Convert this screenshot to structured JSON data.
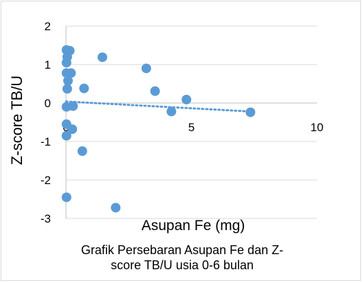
{
  "chart_data": {
    "type": "scatter",
    "title": "",
    "xlabel": "Asupan Fe (mg)",
    "ylabel": "Z-score TB/U",
    "caption_lines": [
      "Grafik Persebaran Asupan Fe dan Z-",
      "score TB/U usia 0-6 bulan"
    ],
    "xlim": [
      0,
      10
    ],
    "ylim": [
      -3,
      2
    ],
    "x_ticks": [
      "0",
      "5",
      "10"
    ],
    "y_ticks": [
      "2",
      "1",
      "0",
      "-1",
      "-2",
      "-3"
    ],
    "grid": "horizontal",
    "trendline": {
      "type": "linear",
      "style": "dotted",
      "from": [
        0,
        0.04
      ],
      "to": [
        7.35,
        -0.22
      ]
    },
    "marker_color": "#5b9bd5",
    "points": [
      {
        "x": 0.02,
        "y": 1.38
      },
      {
        "x": 0.15,
        "y": 1.36
      },
      {
        "x": 0.05,
        "y": 1.2
      },
      {
        "x": 0.02,
        "y": 1.05
      },
      {
        "x": 0.02,
        "y": 0.78
      },
      {
        "x": 0.2,
        "y": 0.78
      },
      {
        "x": 0.08,
        "y": 0.58
      },
      {
        "x": 0.05,
        "y": 0.37
      },
      {
        "x": 0.72,
        "y": 0.38
      },
      {
        "x": 1.45,
        "y": 1.19
      },
      {
        "x": 3.2,
        "y": 0.9
      },
      {
        "x": 3.55,
        "y": 0.31
      },
      {
        "x": 4.8,
        "y": 0.09
      },
      {
        "x": 4.2,
        "y": -0.22
      },
      {
        "x": 7.35,
        "y": -0.24
      },
      {
        "x": 0.02,
        "y": -0.1
      },
      {
        "x": 0.28,
        "y": -0.08
      },
      {
        "x": 0.25,
        "y": -0.68
      },
      {
        "x": 0.02,
        "y": -0.55
      },
      {
        "x": 0.02,
        "y": -0.85
      },
      {
        "x": 0.65,
        "y": -1.25
      },
      {
        "x": 0.02,
        "y": -2.45
      },
      {
        "x": 1.98,
        "y": -2.72
      }
    ]
  }
}
